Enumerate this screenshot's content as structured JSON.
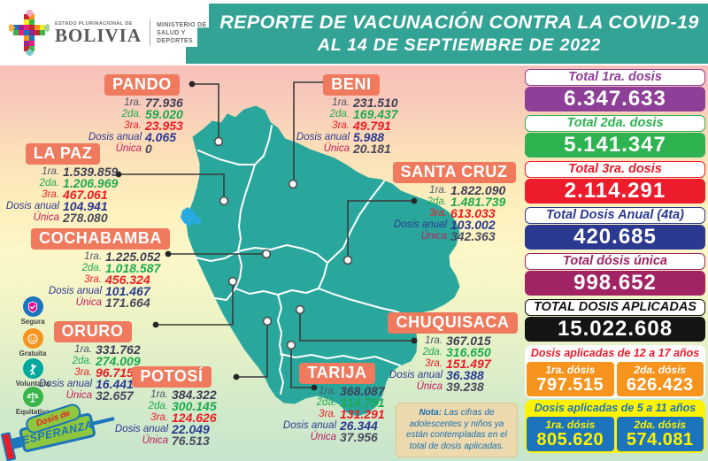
{
  "header": {
    "logo_country_small": "ESTADO PLURINACIONAL DE",
    "logo_country": "BOLIVIA",
    "logo_ministry_line1": "MINISTERIO DE",
    "logo_ministry_line2": "SALUD Y DEPORTES",
    "title_line1": "REPORTE DE VACUNACIÓN CONTRA LA COVID-19",
    "title_line2": "AL 14 DE SEPTIEMBRE DE 2022"
  },
  "stat_labels": {
    "first": "1ra.",
    "second": "2da.",
    "third": "3ra.",
    "annual": "Dosis anual",
    "single": "Única"
  },
  "departments": [
    {
      "name": "PANDO",
      "first": "77.936",
      "second": "59.020",
      "third": "23.953",
      "annual": "4.065",
      "single": "0"
    },
    {
      "name": "BENI",
      "first": "231.510",
      "second": "169.437",
      "third": "49.791",
      "annual": "5.988",
      "single": "20.181"
    },
    {
      "name": "LA PAZ",
      "first": "1.539.859",
      "second": "1.206.969",
      "third": "467.061",
      "annual": "104.941",
      "single": "278.080"
    },
    {
      "name": "SANTA CRUZ",
      "first": "1.822.090",
      "second": "1.481.739",
      "third": "613.033",
      "annual": "103.002",
      "single": "342.363"
    },
    {
      "name": "COCHABAMBA",
      "first": "1.225.052",
      "second": "1.018.587",
      "third": "456.324",
      "annual": "101.467",
      "single": "171.664"
    },
    {
      "name": "ORURO",
      "first": "331.762",
      "second": "274.009",
      "third": "96.715",
      "annual": "16.441",
      "single": "32.657"
    },
    {
      "name": "POTOSÍ",
      "first": "384.322",
      "second": "300.145",
      "third": "124.626",
      "annual": "22.049",
      "single": "76.513"
    },
    {
      "name": "TARIJA",
      "first": "368.087",
      "second": "314.791",
      "third": "131.291",
      "annual": "26.344",
      "single": "37.956"
    },
    {
      "name": "CHUQUISACA",
      "first": "367.015",
      "second": "316.650",
      "third": "151.497",
      "annual": "36.388",
      "single": "39.238"
    }
  ],
  "totals": [
    {
      "label": "Total 1ra. dosis",
      "value": "6.347.633",
      "color": "#8e3f97"
    },
    {
      "label": "Total 2da. dosis",
      "value": "5.141.347",
      "color": "#2db34f"
    },
    {
      "label": "Total 3ra. dosis",
      "value": "2.114.291",
      "color": "#ec1c2c"
    },
    {
      "label": "Total Dosis Anual (4ta)",
      "value": "420.685",
      "color": "#2b3990"
    },
    {
      "label": "Total dósis única",
      "value": "998.652",
      "color": "#a12364"
    },
    {
      "label": "TOTAL DOSIS APLICADAS",
      "value": "15.022.608",
      "color": "#141414"
    }
  ],
  "age_panels": [
    {
      "title": "Dosis aplicadas de 12 a 17 años",
      "title_color": "#ec1c2c",
      "head_bg": "#ffffff",
      "cell_bg": "#f7941e",
      "text_color": "#ffffff",
      "cells": [
        {
          "label": "1ra. dósis",
          "value": "797.515"
        },
        {
          "label": "2da. dósis",
          "value": "626.423"
        }
      ]
    },
    {
      "title": "Dosis aplicadas de 5 a 11 años",
      "title_color": "#1b75bc",
      "head_bg": "#fff200",
      "cell_bg": "#1c75bc",
      "text_color": "#fff200",
      "cells": [
        {
          "label": "1ra. dósis",
          "value": "805.620"
        },
        {
          "label": "2da. dósis",
          "value": "574.081"
        }
      ]
    }
  ],
  "principles": [
    {
      "label": "Segura",
      "color": "#1b75bc",
      "icon": "shield-check-icon"
    },
    {
      "label": "Gratuita",
      "color": "#f7941e",
      "icon": "smiley-icon"
    },
    {
      "label": "Voluntaria",
      "color": "#00a79d",
      "icon": "person-raising-hand-icon"
    },
    {
      "label": "Equitativa",
      "color": "#39b54a",
      "icon": "balance-scale-icon"
    }
  ],
  "note": {
    "bold": "Nota:",
    "text": " Las cifras de adolescentes y niños ya están contempladas en el total de dosis aplicadas."
  },
  "campaign_logo": {
    "line1": "Dosis de",
    "line2": "ESPERANZA"
  },
  "colors": {
    "banner": "#33a396",
    "dept_label_bg": "#ef7a5e",
    "map_fill": "#2aa79c",
    "lake": "#29abe2",
    "stats": {
      "first_label": "#4a5568",
      "first": "#3f3f55",
      "second": "#1daa4e",
      "third": "#ed1c24",
      "annual": "#2b3990",
      "single_label": "#c2185b",
      "single": "#4a4a5e"
    }
  }
}
